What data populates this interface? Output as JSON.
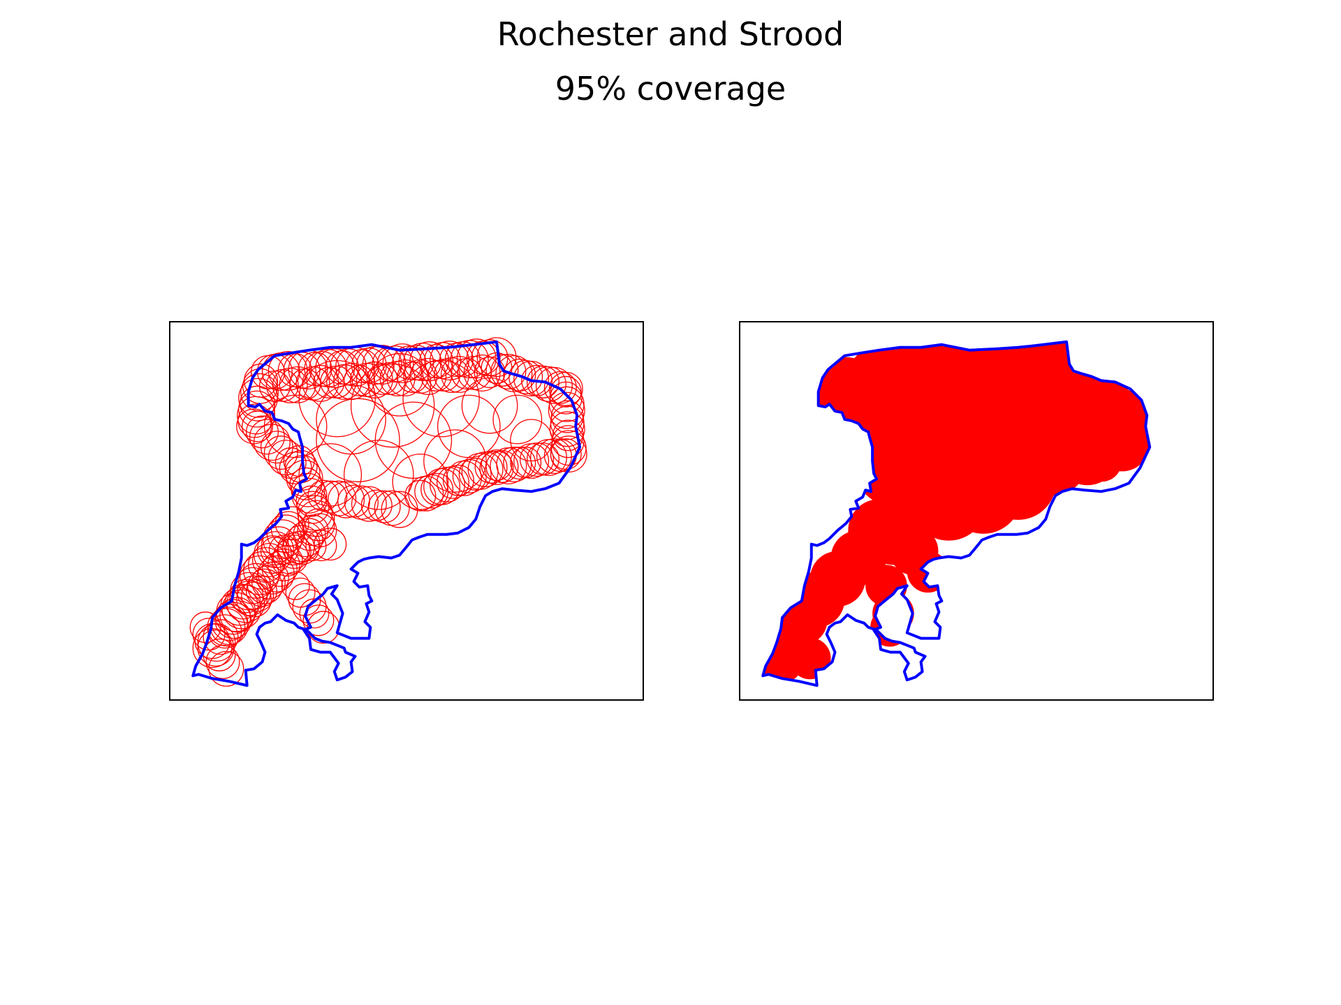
{
  "figure": {
    "title": "Rochester and Strood",
    "subtitle": "95% coverage"
  },
  "colors": {
    "boundary": "#0000ff",
    "coverage": "#ff0000",
    "frame": "#000000",
    "background": "#ffffff"
  },
  "panels": [
    {
      "id": "left",
      "style": "circle-outlines"
    },
    {
      "id": "right",
      "style": "filled-union"
    }
  ]
}
